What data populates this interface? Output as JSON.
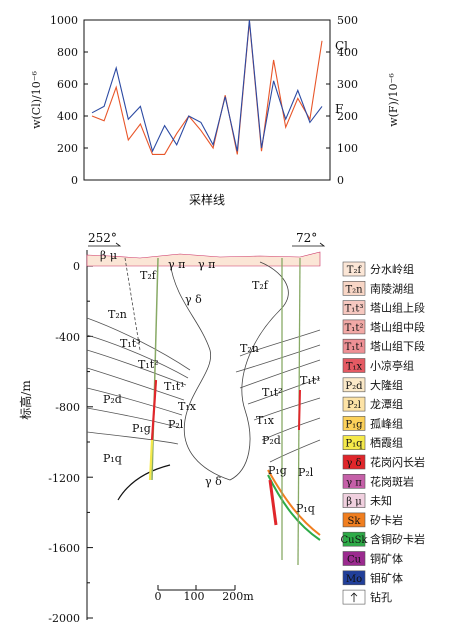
{
  "chart_data": [
    {
      "type": "line",
      "xlabel": "采样线",
      "ylabel_left": "w(Cl)/10⁻⁶",
      "ylabel_right": "w(F)/10⁻⁶",
      "ylim_left": [
        0,
        1000
      ],
      "ylim_right": [
        0,
        500
      ],
      "yticks_left": [
        "0",
        "200",
        "400",
        "600",
        "800",
        "1000"
      ],
      "yticks_right": [
        "0",
        "100",
        "200",
        "300",
        "400",
        "500"
      ],
      "series": [
        {
          "name": "Cl",
          "color": "#e8562a",
          "values": [
            400,
            370,
            580,
            250,
            350,
            160,
            160,
            290,
            400,
            310,
            200,
            530,
            160,
            990,
            180,
            750,
            330,
            510,
            380,
            870
          ]
        },
        {
          "name": "F",
          "color": "#2c4aa3",
          "values": [
            210,
            230,
            350,
            190,
            230,
            90,
            170,
            110,
            200,
            180,
            110,
            260,
            90,
            500,
            100,
            310,
            190,
            280,
            180,
            230
          ]
        }
      ]
    },
    {
      "type": "cross-section",
      "ylabel": "标高/m",
      "ylim": [
        -2000,
        0
      ],
      "yticks": [
        "0",
        "-400",
        "-800",
        "-1200",
        "-1600",
        "-2000"
      ],
      "azimuth_left": "252°",
      "azimuth_right": "72°",
      "scale_labels": [
        "0",
        "100",
        "200m"
      ]
    }
  ],
  "section_labels": [
    {
      "text": "β μ"
    },
    {
      "text": "γ π"
    },
    {
      "text": "γ π"
    },
    {
      "text": "T₂f"
    },
    {
      "text": "T₂f"
    },
    {
      "text": "T₂n"
    },
    {
      "text": "T₂n"
    },
    {
      "text": "T₁t³"
    },
    {
      "text": "γ δ"
    },
    {
      "text": "T₁t²"
    },
    {
      "text": "T₁t¹"
    },
    {
      "text": "T₁x"
    },
    {
      "text": "P₂d"
    },
    {
      "text": "P₂l"
    },
    {
      "text": "P₁g"
    },
    {
      "text": "P₁q"
    },
    {
      "text": "γ δ"
    },
    {
      "text": "T₁t²"
    },
    {
      "text": "T₁t¹"
    },
    {
      "text": "T₁x"
    },
    {
      "text": "P₂d"
    },
    {
      "text": "P₁g"
    },
    {
      "text": "P₂l"
    },
    {
      "text": "P₁q"
    }
  ],
  "legend": [
    {
      "code": "T₂f",
      "label": "分水岭组",
      "color": "#fbe6d6"
    },
    {
      "code": "T₂n",
      "label": "南陵湖组",
      "color": "#f8d6c6"
    },
    {
      "code": "T₁t³",
      "label": "塔山组上段",
      "color": "#f6c8c0"
    },
    {
      "code": "T₁t²",
      "label": "塔山组中段",
      "color": "#f2a9a6"
    },
    {
      "code": "T₁t¹",
      "label": "塔山组下段",
      "color": "#ee9095"
    },
    {
      "code": "T₁x",
      "label": "小凉亭组",
      "color": "#e55a63"
    },
    {
      "code": "P₂d",
      "label": "大隆组",
      "color": "#fbe9c8"
    },
    {
      "code": "P₂l",
      "label": "龙潭组",
      "color": "#fde3a6"
    },
    {
      "code": "P₁g",
      "label": "孤峰组",
      "color": "#fcd15a"
    },
    {
      "code": "P₁q",
      "label": "栖霞组",
      "color": "#f5e94a"
    },
    {
      "code": "γ δ",
      "label": "花岗闪长岩",
      "color": "#e0262b"
    },
    {
      "code": "γ π",
      "label": "花岗斑岩",
      "color": "#c560a8"
    },
    {
      "code": "β μ",
      "label": "未知",
      "color": "#f0d0df"
    },
    {
      "code": "Sk",
      "label": "矽卡岩",
      "color": "#f07e1f"
    },
    {
      "code": "CuSk",
      "label": "含铜矽卡岩",
      "color": "#2eab48"
    },
    {
      "code": "Cu",
      "label": "铜矿体",
      "color": "#9b2a8f"
    },
    {
      "code": "Mo",
      "label": "钼矿体",
      "color": "#213f9a"
    },
    {
      "code": "",
      "label": "钻孔",
      "color": "#ffffff"
    }
  ]
}
